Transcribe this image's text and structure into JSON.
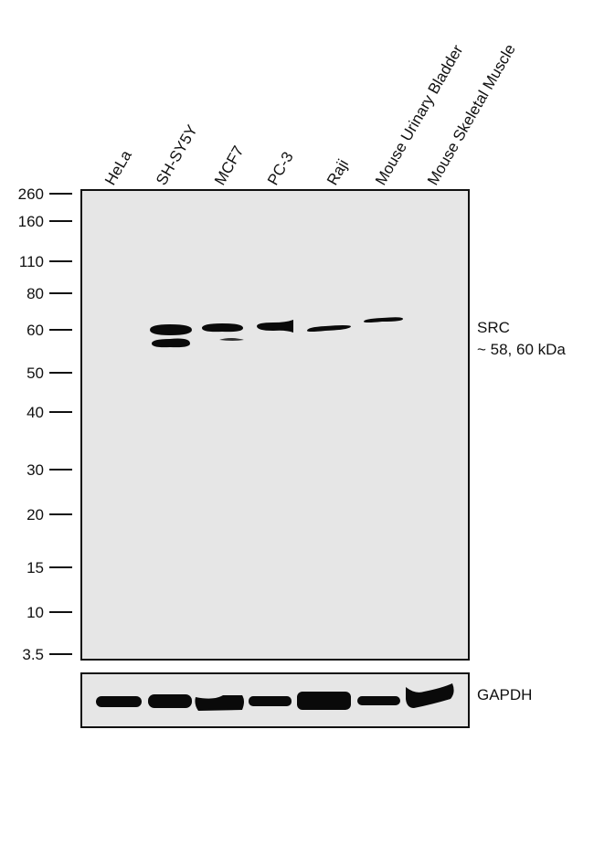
{
  "lanes": [
    "HeLa",
    "SH-SY5Y",
    "MCF7",
    "PC-3",
    "Raji",
    "Mouse Urinary Bladder",
    "Mouse Skeletal Muscle"
  ],
  "mw_markers": [
    "260",
    "160",
    "110",
    "80",
    "60",
    "50",
    "40",
    "30",
    "20",
    "15",
    "10",
    "3.5"
  ],
  "target": {
    "name": "SRC",
    "size": "~ 58, 60 kDa"
  },
  "loading_control": {
    "name": "GAPDH"
  },
  "colors": {
    "membrane": "#e6e6e6",
    "band": "#0a0a0a"
  }
}
